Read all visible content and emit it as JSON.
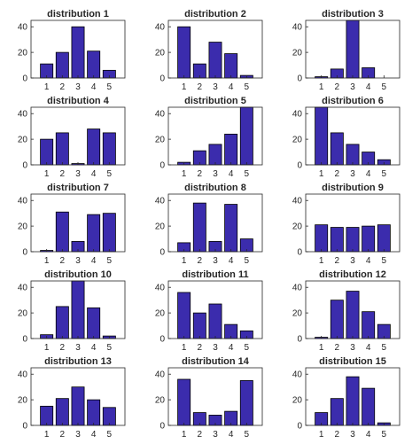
{
  "chart_data": [
    {
      "type": "bar",
      "title": "distribution 1",
      "categories": [
        "1",
        "2",
        "3",
        "4",
        "5"
      ],
      "values": [
        11,
        20,
        40,
        21,
        6
      ],
      "yticks": [
        0,
        20,
        40
      ],
      "ylim": [
        0,
        45
      ],
      "color": "#3b2cad"
    },
    {
      "type": "bar",
      "title": "distribution 2",
      "categories": [
        "1",
        "2",
        "3",
        "4",
        "5"
      ],
      "values": [
        40,
        11,
        28,
        19,
        2
      ],
      "yticks": [
        0,
        20,
        40
      ],
      "ylim": [
        0,
        45
      ],
      "color": "#3b2cad"
    },
    {
      "type": "bar",
      "title": "distribution 3",
      "categories": [
        "1",
        "2",
        "3",
        "4",
        "5"
      ],
      "values": [
        1,
        7,
        46,
        8,
        0
      ],
      "yticks": [
        0,
        20,
        40
      ],
      "ylim": [
        0,
        45
      ],
      "color": "#3b2cad"
    },
    {
      "type": "bar",
      "title": "distribution 4",
      "categories": [
        "1",
        "2",
        "3",
        "4",
        "5"
      ],
      "values": [
        20,
        25,
        1,
        28,
        25
      ],
      "yticks": [
        0,
        20,
        40
      ],
      "ylim": [
        0,
        45
      ],
      "color": "#3b2cad"
    },
    {
      "type": "bar",
      "title": "distribution 5",
      "categories": [
        "1",
        "2",
        "3",
        "4",
        "5"
      ],
      "values": [
        2,
        11,
        16,
        24,
        46
      ],
      "yticks": [
        0,
        20,
        40
      ],
      "ylim": [
        0,
        45
      ],
      "color": "#3b2cad"
    },
    {
      "type": "bar",
      "title": "distribution 6",
      "categories": [
        "1",
        "2",
        "3",
        "4",
        "5"
      ],
      "values": [
        46,
        25,
        16,
        10,
        4
      ],
      "yticks": [
        0,
        20,
        40
      ],
      "ylim": [
        0,
        45
      ],
      "color": "#3b2cad"
    },
    {
      "type": "bar",
      "title": "distribution 7",
      "categories": [
        "1",
        "2",
        "3",
        "4",
        "5"
      ],
      "values": [
        1,
        31,
        8,
        29,
        30
      ],
      "yticks": [
        0,
        20,
        40
      ],
      "ylim": [
        0,
        45
      ],
      "color": "#3b2cad"
    },
    {
      "type": "bar",
      "title": "distribution 8",
      "categories": [
        "1",
        "2",
        "3",
        "4",
        "5"
      ],
      "values": [
        7,
        38,
        8,
        37,
        10
      ],
      "yticks": [
        0,
        20,
        40
      ],
      "ylim": [
        0,
        45
      ],
      "color": "#3b2cad"
    },
    {
      "type": "bar",
      "title": "distribution 9",
      "categories": [
        "1",
        "2",
        "3",
        "4",
        "5"
      ],
      "values": [
        21,
        19,
        19,
        20,
        21
      ],
      "yticks": [
        0,
        20,
        40
      ],
      "ylim": [
        0,
        45
      ],
      "color": "#3b2cad"
    },
    {
      "type": "bar",
      "title": "distribution 10",
      "categories": [
        "1",
        "2",
        "3",
        "4",
        "5"
      ],
      "values": [
        3,
        25,
        46,
        24,
        2
      ],
      "yticks": [
        0,
        20,
        40
      ],
      "ylim": [
        0,
        45
      ],
      "color": "#3b2cad"
    },
    {
      "type": "bar",
      "title": "distribution 11",
      "categories": [
        "1",
        "2",
        "3",
        "4",
        "5"
      ],
      "values": [
        36,
        20,
        27,
        11,
        6
      ],
      "yticks": [
        0,
        20,
        40
      ],
      "ylim": [
        0,
        45
      ],
      "color": "#3b2cad"
    },
    {
      "type": "bar",
      "title": "distribution 12",
      "categories": [
        "1",
        "2",
        "3",
        "4",
        "5"
      ],
      "values": [
        1,
        30,
        37,
        21,
        11
      ],
      "yticks": [
        0,
        20,
        40
      ],
      "ylim": [
        0,
        45
      ],
      "color": "#3b2cad"
    },
    {
      "type": "bar",
      "title": "distribution 13",
      "categories": [
        "1",
        "2",
        "3",
        "4",
        "5"
      ],
      "values": [
        15,
        21,
        30,
        20,
        14
      ],
      "yticks": [
        0,
        20,
        40
      ],
      "ylim": [
        0,
        45
      ],
      "color": "#3b2cad"
    },
    {
      "type": "bar",
      "title": "distribution 14",
      "categories": [
        "1",
        "2",
        "3",
        "4",
        "5"
      ],
      "values": [
        36,
        10,
        8,
        11,
        35
      ],
      "yticks": [
        0,
        20,
        40
      ],
      "ylim": [
        0,
        45
      ],
      "color": "#3b2cad"
    },
    {
      "type": "bar",
      "title": "distribution 15",
      "categories": [
        "1",
        "2",
        "3",
        "4",
        "5"
      ],
      "values": [
        10,
        21,
        38,
        29,
        2
      ],
      "yticks": [
        0,
        20,
        40
      ],
      "ylim": [
        0,
        45
      ],
      "color": "#3b2cad"
    }
  ]
}
